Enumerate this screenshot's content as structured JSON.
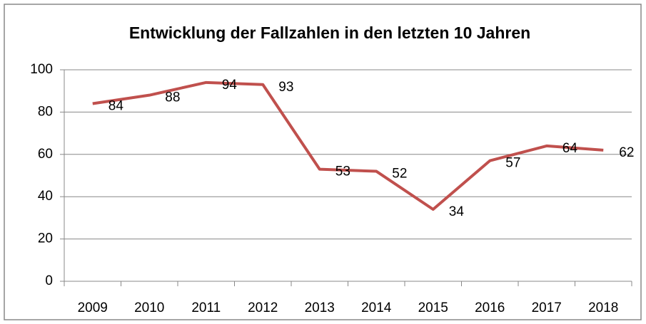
{
  "chart_data": {
    "type": "line",
    "title": "Entwicklung der Fallzahlen in den letzten 10 Jahren",
    "categories": [
      "2009",
      "2010",
      "2011",
      "2012",
      "2013",
      "2014",
      "2015",
      "2016",
      "2017",
      "2018"
    ],
    "values": [
      84,
      88,
      94,
      93,
      53,
      52,
      34,
      57,
      64,
      62
    ],
    "color": "#c0504d",
    "ylim": [
      0,
      100
    ],
    "yticks": [
      0,
      20,
      40,
      60,
      80,
      100
    ],
    "grid": true
  }
}
